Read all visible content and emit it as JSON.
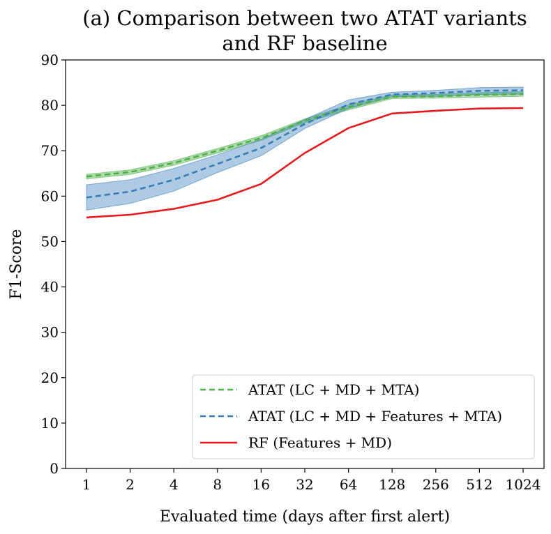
{
  "chart_data": {
    "type": "line",
    "title_lines": [
      "(a) Comparison between two ATAT variants",
      "and RF baseline"
    ],
    "xlabel": "Evaluated time (days after first alert)",
    "ylabel": "F1-Score",
    "x": [
      "1",
      "2",
      "4",
      "8",
      "16",
      "32",
      "64",
      "128",
      "256",
      "512",
      "1024"
    ],
    "ylim": [
      0,
      90
    ],
    "yticks": [
      "0",
      "10",
      "20",
      "30",
      "40",
      "50",
      "60",
      "70",
      "80",
      "90"
    ],
    "grid": false,
    "legend_position": "lower-right",
    "series": [
      {
        "name": "ATAT (LC + MD + MTA)",
        "color": "#4daf4a",
        "style": "dashed",
        "values": [
          64.3,
          65.3,
          67.3,
          70.0,
          72.8,
          76.6,
          79.6,
          81.9,
          82.0,
          82.3,
          82.5
        ],
        "band_low": [
          63.8,
          64.8,
          66.8,
          69.5,
          72.3,
          76.2,
          79.0,
          81.5,
          81.6,
          81.8,
          82.0
        ],
        "band_high": [
          64.8,
          65.8,
          67.8,
          70.5,
          73.3,
          77.0,
          80.1,
          82.3,
          82.4,
          82.8,
          83.0
        ]
      },
      {
        "name": "ATAT (LC + MD + Features + MTA)",
        "color": "#377eb8",
        "style": "dashed",
        "values": [
          59.7,
          61.0,
          63.6,
          67.1,
          70.6,
          75.9,
          80.2,
          82.4,
          82.7,
          83.2,
          83.3
        ],
        "band_low": [
          56.9,
          58.4,
          61.1,
          65.2,
          68.9,
          74.9,
          79.3,
          81.9,
          82.0,
          82.4,
          82.5
        ],
        "band_high": [
          62.5,
          63.6,
          66.1,
          69.1,
          72.5,
          76.9,
          81.2,
          82.9,
          83.3,
          83.9,
          84.0
        ]
      },
      {
        "name": "RF (Features + MD)",
        "color": "#e41a1c",
        "style": "solid",
        "values": [
          55.3,
          55.9,
          57.2,
          59.2,
          62.7,
          69.5,
          75.0,
          78.2,
          78.8,
          79.3,
          79.4
        ]
      }
    ]
  }
}
